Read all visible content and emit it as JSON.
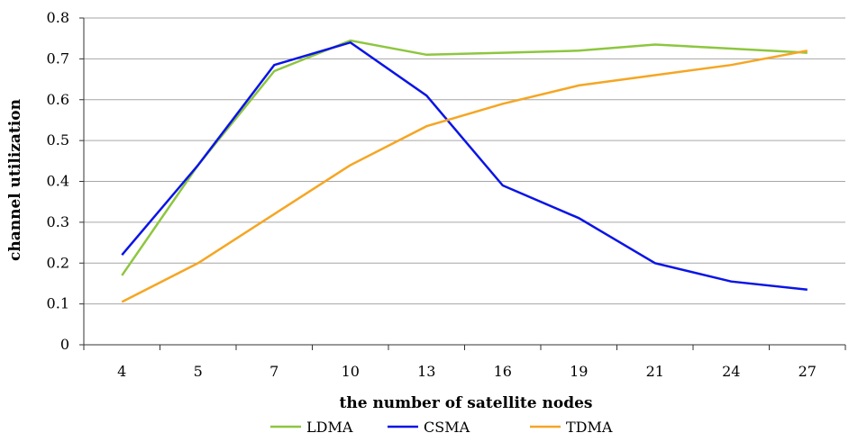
{
  "chart_data": {
    "type": "line",
    "title": "",
    "xlabel": "the number of satellite nodes",
    "ylabel": "channel utilization",
    "categories": [
      "4",
      "5",
      "7",
      "10",
      "13",
      "16",
      "19",
      "21",
      "24",
      "27"
    ],
    "ylim": [
      0,
      0.8
    ],
    "yticks": [
      "0",
      "0.1",
      "0.2",
      "0.3",
      "0.4",
      "0.5",
      "0.6",
      "0.7",
      "0.8"
    ],
    "grid": true,
    "legend_position": "bottom",
    "series": [
      {
        "name": "LDMA",
        "color": "#8dc63f",
        "values": [
          0.17,
          0.44,
          0.67,
          0.745,
          0.71,
          0.715,
          0.72,
          0.735,
          0.725,
          0.715
        ]
      },
      {
        "name": "CSMA",
        "color": "#0a14e6",
        "values": [
          0.22,
          0.44,
          0.685,
          0.74,
          0.61,
          0.39,
          0.31,
          0.2,
          0.155,
          0.135
        ]
      },
      {
        "name": "TDMA",
        "color": "#f5a623",
        "values": [
          0.105,
          0.2,
          0.32,
          0.44,
          0.535,
          0.59,
          0.635,
          0.66,
          0.685,
          0.72
        ]
      }
    ]
  }
}
